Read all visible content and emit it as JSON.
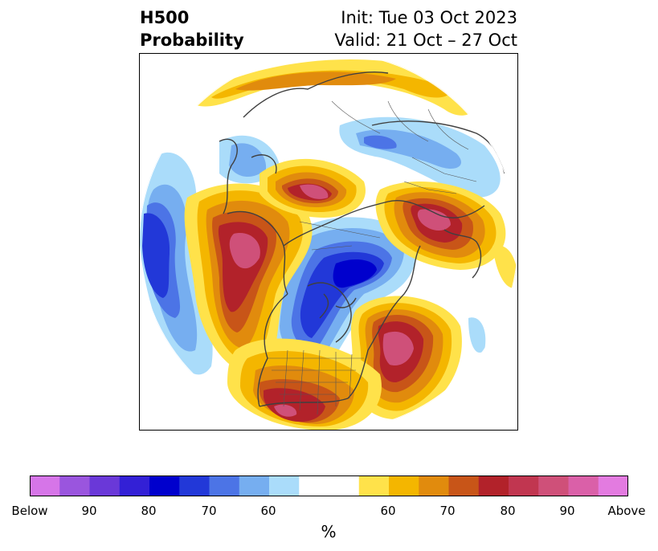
{
  "title": {
    "line1": "H500",
    "line2": "Probability",
    "init": "Init: Tue 03 Oct 2023",
    "valid": "Valid: 21 Oct – 27 Oct"
  },
  "colorbar": {
    "colors": [
      "#d675e8",
      "#9a55de",
      "#6a38d8",
      "#3320d6",
      "#0000cd",
      "#2238d8",
      "#4c74e6",
      "#76aef0",
      "#aadcfa",
      "#ffffff",
      "#ffffff",
      "#ffe24a",
      "#f4b600",
      "#e18b0d",
      "#c85518",
      "#b2222a",
      "#c13650",
      "#cf5079",
      "#da60a8",
      "#e37be0"
    ],
    "ticks": [
      "Below",
      "90",
      "80",
      "70",
      "60",
      "60",
      "70",
      "80",
      "90",
      "Above"
    ],
    "unit": "%"
  },
  "colors": {
    "blue_light": "#aadcfa",
    "blue_mid": "#76aef0",
    "blue": "#4c74e6",
    "blue_deep": "#2238d8",
    "blue_core": "#0000cd",
    "yellow": "#ffe24a",
    "gold": "#f4b600",
    "orange": "#e18b0d",
    "rust": "#c85518",
    "red": "#b2222a",
    "magenta": "#cf5079"
  }
}
